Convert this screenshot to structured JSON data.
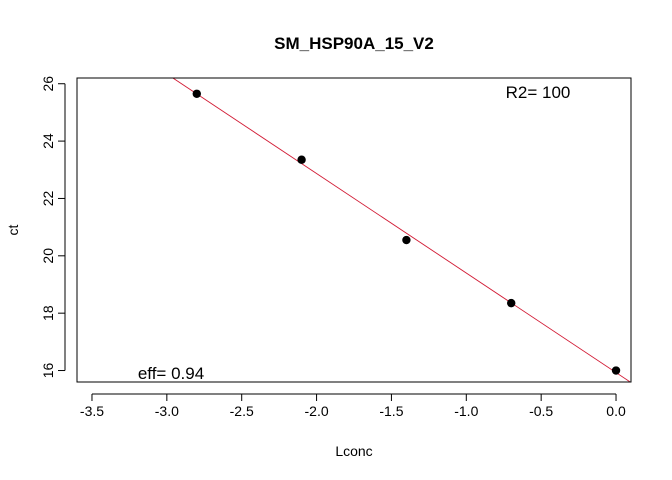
{
  "chart_data": {
    "type": "scatter",
    "title": "SM_HSP90A_15_V2",
    "xlabel": "Lconc",
    "ylabel": "ct",
    "xlim": [
      -3.6,
      0.1
    ],
    "ylim": [
      15.6,
      26.2
    ],
    "xticks": [
      -3.5,
      -3.0,
      -2.5,
      -2.0,
      -1.5,
      -1.0,
      -0.5,
      0.0
    ],
    "xtick_labels": [
      "-3.5",
      "-3.0",
      "-2.5",
      "-2.0",
      "-1.5",
      "-1.0",
      "-0.5",
      "0.0"
    ],
    "yticks": [
      16,
      18,
      20,
      22,
      24,
      26
    ],
    "ytick_labels": [
      "16",
      "18",
      "20",
      "22",
      "24",
      "26"
    ],
    "points": [
      {
        "x": -2.8,
        "y": 25.65
      },
      {
        "x": -2.1,
        "y": 23.35
      },
      {
        "x": -1.4,
        "y": 20.55
      },
      {
        "x": -0.7,
        "y": 18.35
      },
      {
        "x": 0.0,
        "y": 16.0
      }
    ],
    "fit_line": {
      "slope": -3.47,
      "intercept": 15.93,
      "color": "#d21a34"
    },
    "point_color": "#000000",
    "annotations": {
      "r2": "R2= 100",
      "eff": "eff= 0.94"
    }
  }
}
